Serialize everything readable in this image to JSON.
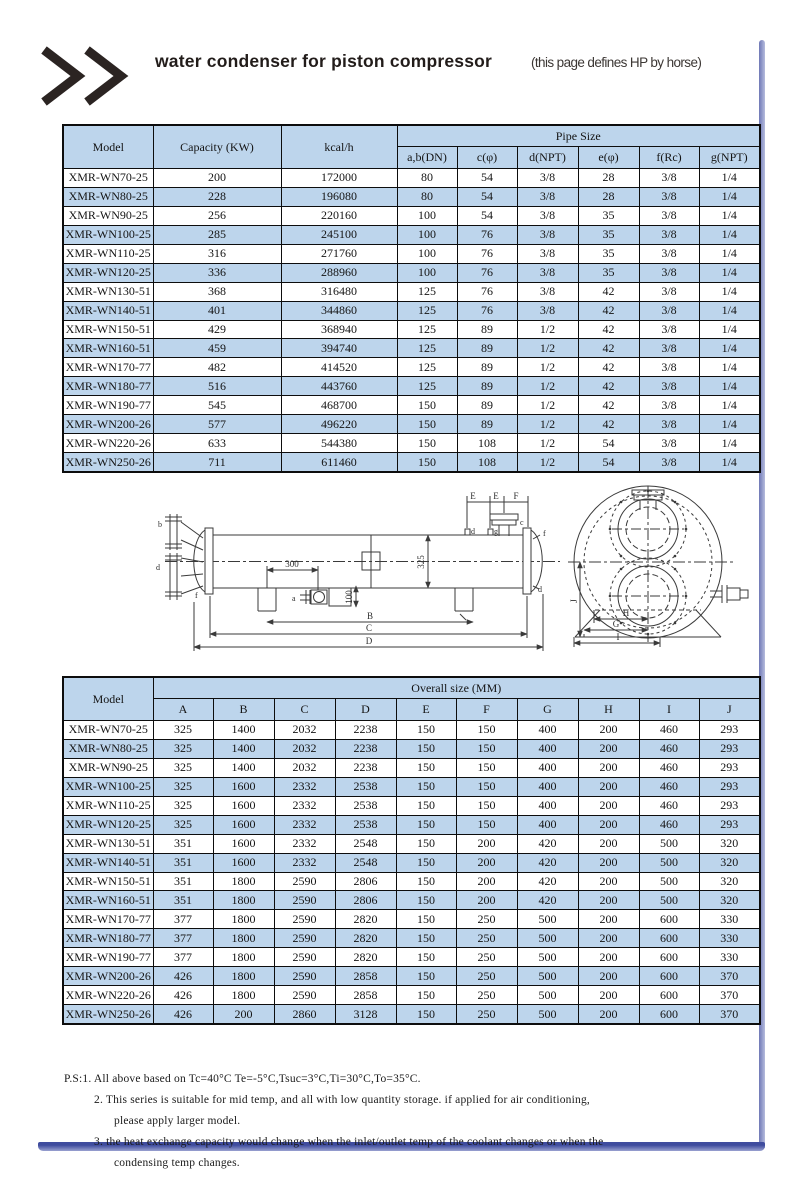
{
  "header": {
    "logo": ">>",
    "title": "water condenser for piston compressor",
    "subtitle": "(this page defines HP by horse)"
  },
  "pipe_table": {
    "col_model": "Model",
    "col_capacity": "Capacity (KW)",
    "col_kcal": "kcal/h",
    "group": "Pipe Size",
    "subcols": [
      "a,b(DN)",
      "c(φ)",
      "d(NPT)",
      "e(φ)",
      "f(Rc)",
      "g(NPT)"
    ],
    "rows": [
      [
        "XMR-WN70-25",
        "200",
        "172000",
        "80",
        "54",
        "3/8",
        "28",
        "3/8",
        "1/4"
      ],
      [
        "XMR-WN80-25",
        "228",
        "196080",
        "80",
        "54",
        "3/8",
        "28",
        "3/8",
        "1/4"
      ],
      [
        "XMR-WN90-25",
        "256",
        "220160",
        "100",
        "54",
        "3/8",
        "35",
        "3/8",
        "1/4"
      ],
      [
        "XMR-WN100-25",
        "285",
        "245100",
        "100",
        "76",
        "3/8",
        "35",
        "3/8",
        "1/4"
      ],
      [
        "XMR-WN110-25",
        "316",
        "271760",
        "100",
        "76",
        "3/8",
        "35",
        "3/8",
        "1/4"
      ],
      [
        "XMR-WN120-25",
        "336",
        "288960",
        "100",
        "76",
        "3/8",
        "35",
        "3/8",
        "1/4"
      ],
      [
        "XMR-WN130-51",
        "368",
        "316480",
        "125",
        "76",
        "3/8",
        "42",
        "3/8",
        "1/4"
      ],
      [
        "XMR-WN140-51",
        "401",
        "344860",
        "125",
        "76",
        "3/8",
        "42",
        "3/8",
        "1/4"
      ],
      [
        "XMR-WN150-51",
        "429",
        "368940",
        "125",
        "89",
        "1/2",
        "42",
        "3/8",
        "1/4"
      ],
      [
        "XMR-WN160-51",
        "459",
        "394740",
        "125",
        "89",
        "1/2",
        "42",
        "3/8",
        "1/4"
      ],
      [
        "XMR-WN170-77",
        "482",
        "414520",
        "125",
        "89",
        "1/2",
        "42",
        "3/8",
        "1/4"
      ],
      [
        "XMR-WN180-77",
        "516",
        "443760",
        "125",
        "89",
        "1/2",
        "42",
        "3/8",
        "1/4"
      ],
      [
        "XMR-WN190-77",
        "545",
        "468700",
        "150",
        "89",
        "1/2",
        "42",
        "3/8",
        "1/4"
      ],
      [
        "XMR-WN200-26",
        "577",
        "496220",
        "150",
        "89",
        "1/2",
        "42",
        "3/8",
        "1/4"
      ],
      [
        "XMR-WN220-26",
        "633",
        "544380",
        "150",
        "108",
        "1/2",
        "54",
        "3/8",
        "1/4"
      ],
      [
        "XMR-WN250-26",
        "711",
        "611460",
        "150",
        "108",
        "1/2",
        "54",
        "3/8",
        "1/4"
      ]
    ]
  },
  "overall_table": {
    "col_model": "Model",
    "group": "Overall size (MM)",
    "subcols": [
      "A",
      "B",
      "C",
      "D",
      "E",
      "F",
      "G",
      "H",
      "I",
      "J"
    ],
    "rows": [
      [
        "XMR-WN70-25",
        "325",
        "1400",
        "2032",
        "2238",
        "150",
        "150",
        "400",
        "200",
        "460",
        "293"
      ],
      [
        "XMR-WN80-25",
        "325",
        "1400",
        "2032",
        "2238",
        "150",
        "150",
        "400",
        "200",
        "460",
        "293"
      ],
      [
        "XMR-WN90-25",
        "325",
        "1400",
        "2032",
        "2238",
        "150",
        "150",
        "400",
        "200",
        "460",
        "293"
      ],
      [
        "XMR-WN100-25",
        "325",
        "1600",
        "2332",
        "2538",
        "150",
        "150",
        "400",
        "200",
        "460",
        "293"
      ],
      [
        "XMR-WN110-25",
        "325",
        "1600",
        "2332",
        "2538",
        "150",
        "150",
        "400",
        "200",
        "460",
        "293"
      ],
      [
        "XMR-WN120-25",
        "325",
        "1600",
        "2332",
        "2538",
        "150",
        "150",
        "400",
        "200",
        "460",
        "293"
      ],
      [
        "XMR-WN130-51",
        "351",
        "1600",
        "2332",
        "2548",
        "150",
        "200",
        "420",
        "200",
        "500",
        "320"
      ],
      [
        "XMR-WN140-51",
        "351",
        "1600",
        "2332",
        "2548",
        "150",
        "200",
        "420",
        "200",
        "500",
        "320"
      ],
      [
        "XMR-WN150-51",
        "351",
        "1800",
        "2590",
        "2806",
        "150",
        "200",
        "420",
        "200",
        "500",
        "320"
      ],
      [
        "XMR-WN160-51",
        "351",
        "1800",
        "2590",
        "2806",
        "150",
        "200",
        "420",
        "200",
        "500",
        "320"
      ],
      [
        "XMR-WN170-77",
        "377",
        "1800",
        "2590",
        "2820",
        "150",
        "250",
        "500",
        "200",
        "600",
        "330"
      ],
      [
        "XMR-WN180-77",
        "377",
        "1800",
        "2590",
        "2820",
        "150",
        "250",
        "500",
        "200",
        "600",
        "330"
      ],
      [
        "XMR-WN190-77",
        "377",
        "1800",
        "2590",
        "2820",
        "150",
        "250",
        "500",
        "200",
        "600",
        "330"
      ],
      [
        "XMR-WN200-26",
        "426",
        "1800",
        "2590",
        "2858",
        "150",
        "250",
        "500",
        "200",
        "600",
        "370"
      ],
      [
        "XMR-WN220-26",
        "426",
        "1800",
        "2590",
        "2858",
        "150",
        "250",
        "500",
        "200",
        "600",
        "370"
      ],
      [
        "XMR-WN250-26",
        "426",
        "200",
        "2860",
        "3128",
        "150",
        "250",
        "500",
        "200",
        "600",
        "370"
      ]
    ]
  },
  "diagram": {
    "side": {
      "dim_e1": "E",
      "dim_e2": "E",
      "dim_f": "F",
      "label_b": "b",
      "label_d_left": "d",
      "label_f_left": "f",
      "label_a": "a",
      "label_c": "c",
      "label_d_top": "d",
      "label_g": "g",
      "label_f_right": "f",
      "label_d_right": "d",
      "dim_300": "300",
      "dim_100": "100",
      "dim_325": "325",
      "dim_b": "B",
      "dim_c": "C",
      "dim_d": "D"
    },
    "end": {
      "dim_h": "H",
      "dim_g": "G",
      "dim_i": "I",
      "dim_j": "J"
    }
  },
  "notes": {
    "line1": "P.S:1. All above based on Tc=40°C Te=-5°C,Tsuc=3°C,Ti=30°C,To=35°C.",
    "line2": "2. This series is suitable for mid temp, and all with low quantity storage. if applied for air conditioning,",
    "line3": "please apply larger model.",
    "line4": "3. the heat exchange capacity would change when the inlet/outlet temp of the coolant changes or when the",
    "line5": "condensing temp changes."
  },
  "colors": {
    "row_blue": "#bdd5ec",
    "frame_blue": "#6f78b6",
    "border": "#0d0d0d"
  }
}
